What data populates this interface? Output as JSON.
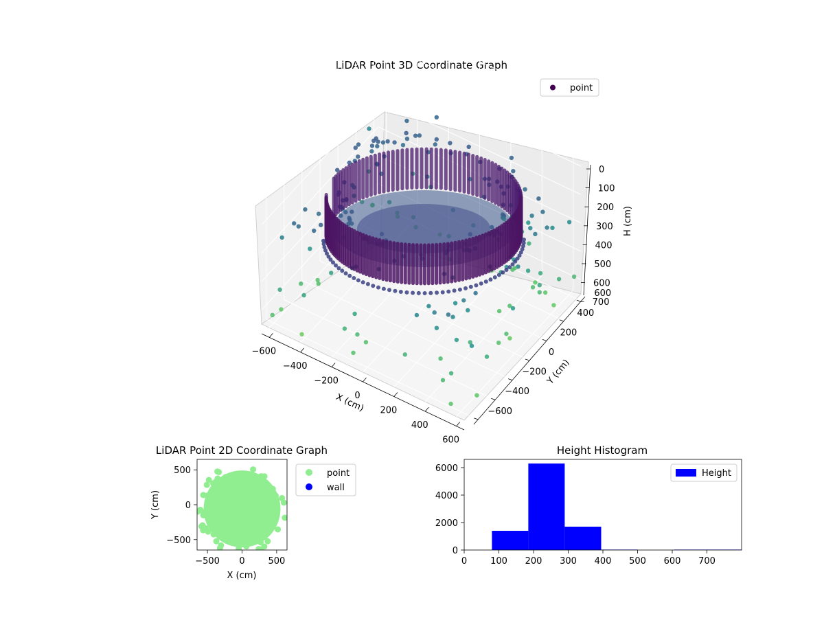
{
  "chart_data": [
    {
      "type": "scatter",
      "projection": "3d",
      "title": "LiDAR Point 3D Coordinate Graph",
      "xlabel": "X (cm)",
      "ylabel": "Y (cm)",
      "zlabel": "H (cm)",
      "x_ticks": [
        "−600",
        "−400",
        "−200",
        "0",
        "200",
        "400",
        "600"
      ],
      "y_ticks": [
        "−600",
        "−400",
        "−200",
        "0",
        "200",
        "400",
        "600"
      ],
      "z_ticks": [
        "0",
        "100",
        "200",
        "300",
        "400",
        "500",
        "600",
        "700"
      ],
      "xlim": [
        -650,
        650
      ],
      "ylim": [
        -650,
        650
      ],
      "zlim": [
        0,
        750
      ],
      "z_inverted": true,
      "colormap": "viridis",
      "legend": {
        "placement": "top-right",
        "label": "point"
      },
      "structures": [
        {
          "kind": "ring-wall",
          "center": [
            0,
            0
          ],
          "radius": 420,
          "height_range": [
            80,
            300
          ]
        },
        {
          "kind": "floor-disc",
          "center": [
            0,
            0
          ],
          "radius": 380,
          "height": 300
        }
      ],
      "scattered_points": {
        "height_range": [
          350,
          750
        ],
        "extent": [
          -650,
          650
        ]
      },
      "grid": true
    },
    {
      "type": "scatter",
      "title": "LiDAR Point 2D Coordinate Graph",
      "xlabel": "X (cm)",
      "ylabel": "Y (cm)",
      "x_ticks": [
        "−500",
        "0",
        "500"
      ],
      "y_ticks": [
        "−500",
        "0",
        "500"
      ],
      "xlim": [
        -650,
        650
      ],
      "ylim": [
        -650,
        650
      ],
      "series": [
        {
          "name": "point",
          "color": "#90ee90"
        },
        {
          "name": "wall",
          "color": "#0000ff"
        }
      ],
      "legend": {
        "placement": "outside-right"
      }
    },
    {
      "type": "bar",
      "title": "Height Histogram",
      "x_ticks": [
        "0",
        "100",
        "200",
        "300",
        "400",
        "500",
        "600",
        "700"
      ],
      "y_ticks": [
        "0",
        "2000",
        "4000",
        "6000"
      ],
      "xlim": [
        0,
        800
      ],
      "ylim": [
        0,
        6600
      ],
      "bins": [
        {
          "start": 80,
          "end": 185,
          "value": 1400
        },
        {
          "start": 185,
          "end": 290,
          "value": 6300
        },
        {
          "start": 290,
          "end": 395,
          "value": 1700
        },
        {
          "start": 395,
          "end": 500,
          "value": 30
        },
        {
          "start": 500,
          "end": 605,
          "value": 0
        },
        {
          "start": 605,
          "end": 800,
          "value": 30
        }
      ],
      "series": [
        {
          "name": "Height",
          "color": "#0000ff"
        }
      ],
      "legend": {
        "placement": "top-right"
      }
    }
  ]
}
